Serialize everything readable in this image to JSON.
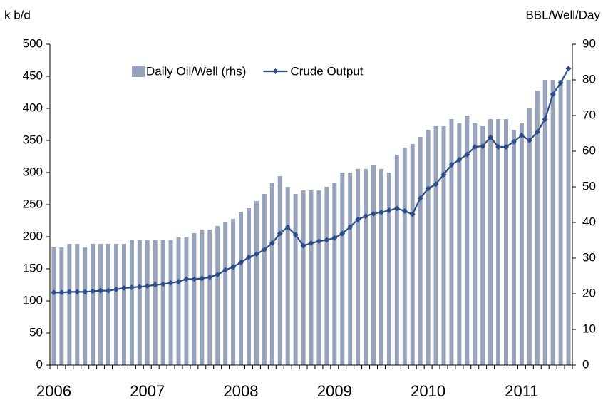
{
  "chart_data": {
    "type": "bar-line",
    "y_label": "k b/d",
    "y2_label": "BBL/Well/Day",
    "categories": [
      "2006",
      null,
      null,
      null,
      null,
      null,
      null,
      null,
      null,
      null,
      null,
      null,
      "2007",
      null,
      null,
      null,
      null,
      null,
      null,
      null,
      null,
      null,
      null,
      null,
      "2008",
      null,
      null,
      null,
      null,
      null,
      null,
      null,
      null,
      null,
      null,
      null,
      "2009",
      null,
      null,
      null,
      null,
      null,
      null,
      null,
      null,
      null,
      null,
      null,
      "2010",
      null,
      null,
      null,
      null,
      null,
      null,
      null,
      null,
      null,
      null,
      null,
      "2011",
      null,
      null,
      null,
      null,
      null,
      null
    ],
    "series": [
      {
        "name": "Daily Oil/Well (rhs)",
        "type": "bar",
        "axis": "y2",
        "color": "#97a3bb",
        "values": [
          33,
          33,
          34,
          34,
          33,
          34,
          34,
          34,
          34,
          34,
          35,
          35,
          35,
          35,
          35,
          35,
          36,
          36,
          37,
          38,
          38,
          39,
          40,
          41,
          43,
          44,
          46,
          48,
          51,
          53,
          50,
          48,
          49,
          49,
          49,
          50,
          51,
          54,
          54,
          55,
          55,
          56,
          55,
          54,
          59,
          61,
          62,
          64,
          66,
          67,
          67,
          69,
          68,
          70,
          68,
          67,
          69,
          69,
          69,
          66,
          68,
          72,
          77,
          80,
          80,
          80,
          80
        ]
      },
      {
        "name": "Crude Output",
        "type": "line",
        "color": "#2c4d8c",
        "values": [
          113,
          113,
          114,
          114,
          114,
          115,
          116,
          116,
          118,
          120,
          121,
          122,
          123,
          125,
          126,
          128,
          130,
          134,
          134,
          135,
          137,
          141,
          148,
          153,
          160,
          168,
          173,
          180,
          190,
          205,
          215,
          203,
          186,
          190,
          193,
          195,
          198,
          205,
          215,
          227,
          232,
          236,
          238,
          241,
          244,
          240,
          235,
          260,
          275,
          282,
          297,
          312,
          320,
          328,
          340,
          341,
          355,
          340,
          340,
          348,
          358,
          350,
          363,
          383,
          422,
          440,
          462
        ]
      }
    ],
    "ylim": [
      0,
      500
    ],
    "yticks": [
      0,
      50,
      100,
      150,
      200,
      250,
      300,
      350,
      400,
      450,
      500
    ],
    "y2lim": [
      0,
      90
    ],
    "y2ticks": [
      0,
      10,
      20,
      30,
      40,
      50,
      60,
      70,
      80,
      90
    ]
  }
}
